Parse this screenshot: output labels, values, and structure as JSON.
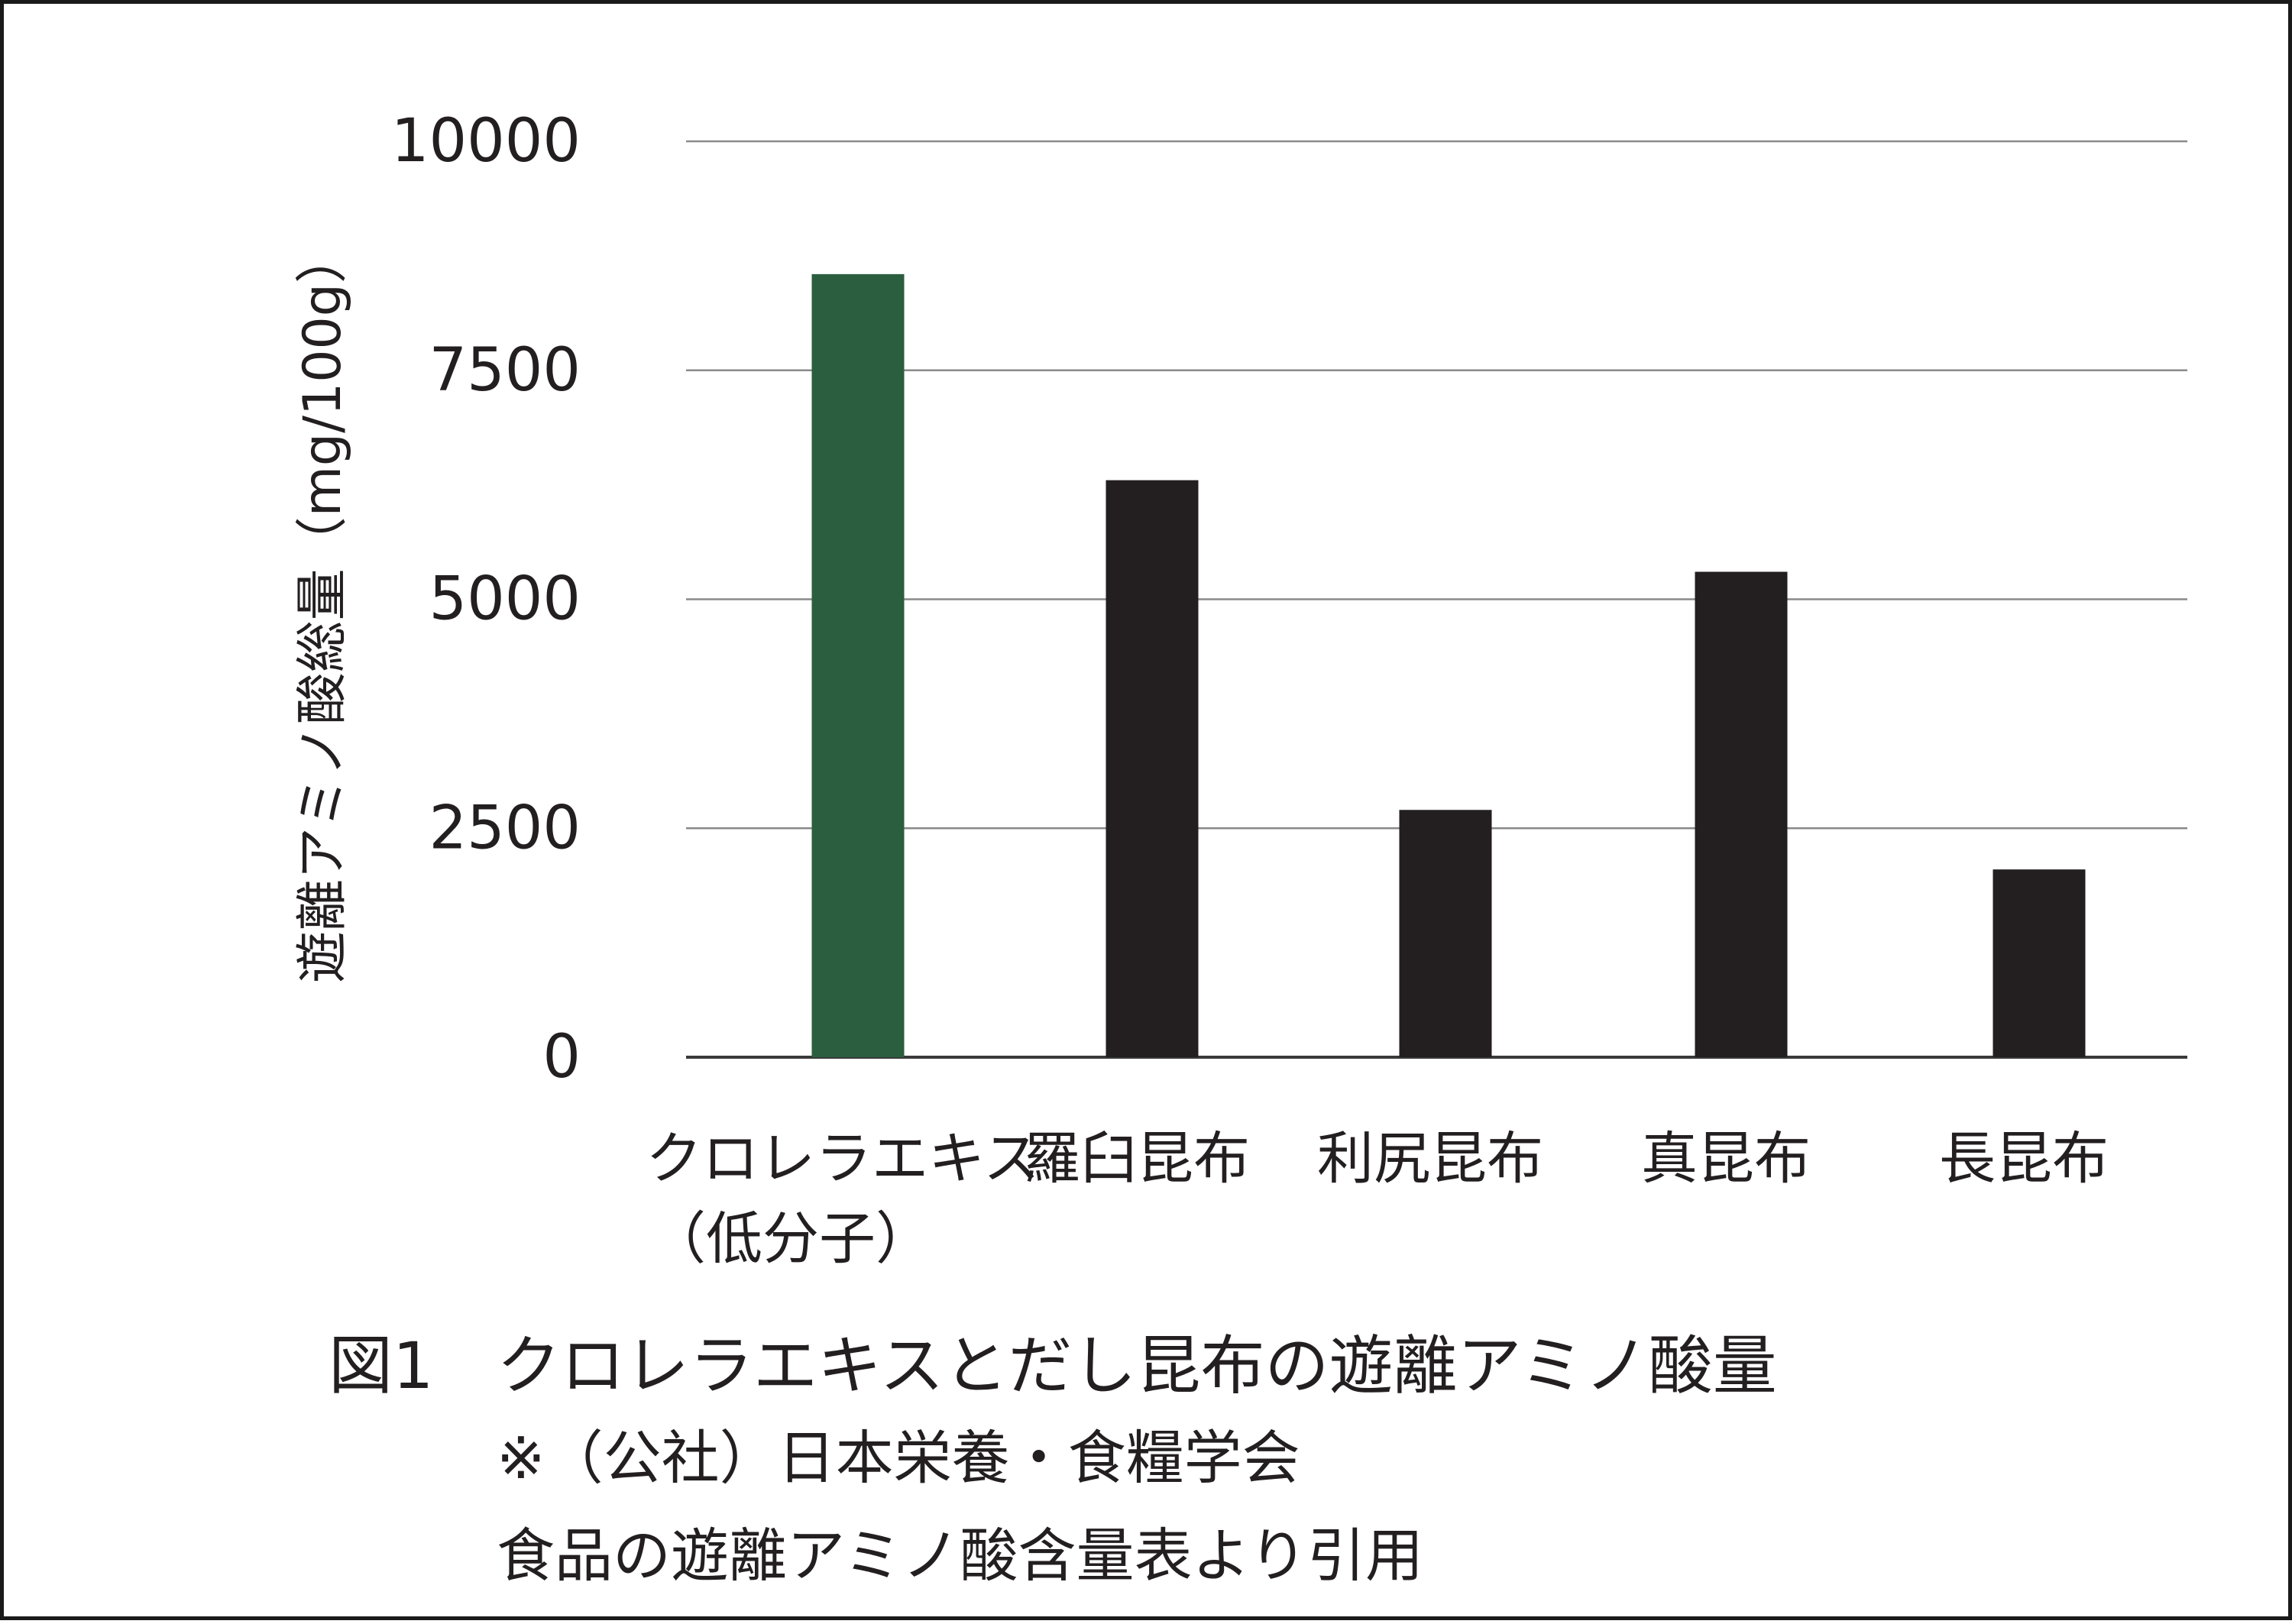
{
  "chart_data": {
    "type": "bar",
    "categories": [
      [
        "クロレラエキス",
        "（低分子）"
      ],
      [
        "羅臼昆布"
      ],
      [
        "利尻昆布"
      ],
      [
        "真昆布"
      ],
      [
        "長昆布"
      ]
    ],
    "values": [
      8550,
      6300,
      2700,
      5300,
      2050
    ],
    "bar_colors": [
      "#2b5e3f",
      "#231f20",
      "#231f20",
      "#231f20",
      "#231f20"
    ],
    "ylabel": "遊離アミノ酸総量（mg/100g）",
    "xlabel": "",
    "ylim": [
      0,
      10000
    ],
    "yticks": [
      0,
      2500,
      5000,
      7500,
      10000
    ],
    "grid": true
  },
  "caption": {
    "label": "図1",
    "title": "クロレラエキスとだし昆布の遊離アミノ酸量",
    "note_line1": "※（公社）日本栄養・食糧学会",
    "note_line2": "食品の遊離アミノ酸含量表より引用"
  }
}
